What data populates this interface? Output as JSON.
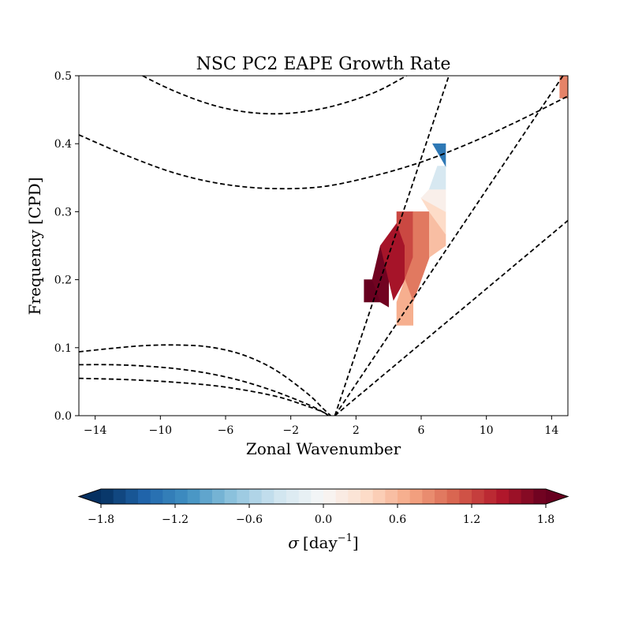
{
  "chart_data": {
    "type": "contourf",
    "title": "NSC PC2 EAPE Growth Rate",
    "xlabel": "Zonal Wavenumber",
    "ylabel": "Frequency [CPD]",
    "xlim": [
      -15,
      15
    ],
    "ylim": [
      0,
      0.5
    ],
    "xticks": [
      -14,
      -10,
      -6,
      -2,
      2,
      6,
      10,
      14
    ],
    "yticks": [
      0.0,
      0.1,
      0.2,
      0.3,
      0.4,
      0.5
    ],
    "xtick_labels": [
      "−14",
      "−10",
      "−6",
      "−2",
      "2",
      "6",
      "10",
      "14"
    ],
    "ytick_labels": [
      "0.0",
      "0.1",
      "0.2",
      "0.3",
      "0.4",
      "0.5"
    ],
    "grid": false,
    "colorbar": {
      "label_symbol": "σ",
      "label_unit": "[day",
      "label_exp": "−1",
      "label_close": "]",
      "range": [
        -1.8,
        1.8
      ],
      "ticks": [
        -1.8,
        -1.2,
        -0.6,
        0.0,
        0.6,
        1.2,
        1.8
      ],
      "tick_labels": [
        "−1.8",
        "−1.2",
        "−0.6",
        "0.0",
        "0.6",
        "1.2",
        "1.8"
      ],
      "colormap": "RdBu_r",
      "extend": "both"
    },
    "dispersion_curves": [
      {
        "points": [
          [
            -15,
            0.558
          ],
          [
            -12,
            0.512
          ],
          [
            -9,
            0.476
          ],
          [
            -6,
            0.452
          ],
          [
            -3,
            0.444
          ],
          [
            0,
            0.452
          ],
          [
            3,
            0.474
          ],
          [
            5.1,
            0.5
          ]
        ]
      },
      {
        "points": [
          [
            -15,
            0.413
          ],
          [
            -12,
            0.382
          ],
          [
            -9,
            0.356
          ],
          [
            -6,
            0.34
          ],
          [
            -3,
            0.334
          ],
          [
            0,
            0.337
          ],
          [
            3,
            0.352
          ],
          [
            6,
            0.373
          ],
          [
            9,
            0.401
          ],
          [
            12,
            0.434
          ],
          [
            15,
            0.47
          ]
        ]
      },
      {
        "points": [
          [
            0.7,
            0
          ],
          [
            7.7,
            0.5
          ]
        ]
      },
      {
        "points": [
          [
            0.7,
            0
          ],
          [
            14.7,
            0.5
          ]
        ]
      },
      {
        "points": [
          [
            0.7,
            0
          ],
          [
            15,
            0.287
          ]
        ]
      },
      {
        "points": [
          [
            -15,
            0.094
          ],
          [
            -13,
            0.099
          ],
          [
            -11,
            0.103
          ],
          [
            -9,
            0.104
          ],
          [
            -7,
            0.101
          ],
          [
            -5,
            0.09
          ],
          [
            -3,
            0.068
          ],
          [
            -1,
            0.033
          ],
          [
            0,
            0.01
          ],
          [
            0.45,
            0
          ]
        ]
      },
      {
        "points": [
          [
            -15,
            0.075
          ],
          [
            -13,
            0.075
          ],
          [
            -11,
            0.073
          ],
          [
            -9,
            0.069
          ],
          [
            -7,
            0.062
          ],
          [
            -5,
            0.051
          ],
          [
            -3,
            0.036
          ],
          [
            -1,
            0.017
          ],
          [
            0,
            0.005
          ],
          [
            0.3,
            0
          ]
        ]
      },
      {
        "points": [
          [
            -15,
            0.055
          ],
          [
            -12,
            0.053
          ],
          [
            -9,
            0.049
          ],
          [
            -6,
            0.042
          ],
          [
            -3,
            0.029
          ],
          [
            -1,
            0.014
          ],
          [
            0,
            0.005
          ],
          [
            0.3,
            0
          ]
        ]
      }
    ],
    "growth_patches": [
      {
        "value": 1.8,
        "points": [
          [
            2.5,
            0.2
          ],
          [
            3.5,
            0.2
          ],
          [
            3.5,
            0.167
          ],
          [
            2.5,
            0.167
          ]
        ]
      },
      {
        "value": 1.75,
        "points": [
          [
            3.5,
            0.25
          ],
          [
            4.0,
            0.2
          ],
          [
            4.0,
            0.16
          ],
          [
            3.5,
            0.167
          ],
          [
            3.0,
            0.2
          ]
        ]
      },
      {
        "value": 1.5,
        "points": [
          [
            4.5,
            0.283
          ],
          [
            5.0,
            0.25
          ],
          [
            5.0,
            0.2
          ],
          [
            4.3,
            0.17
          ],
          [
            4.0,
            0.2
          ],
          [
            3.5,
            0.25
          ]
        ]
      },
      {
        "value": 1.2,
        "points": [
          [
            4.5,
            0.3
          ],
          [
            5.5,
            0.3
          ],
          [
            5.5,
            0.233
          ],
          [
            5.0,
            0.2
          ],
          [
            5.0,
            0.25
          ],
          [
            4.5,
            0.283
          ]
        ]
      },
      {
        "value": 0.95,
        "points": [
          [
            5.5,
            0.3
          ],
          [
            6.5,
            0.3
          ],
          [
            6.5,
            0.233
          ],
          [
            6.0,
            0.2
          ],
          [
            5.5,
            0.167
          ],
          [
            5.0,
            0.2
          ],
          [
            5.5,
            0.233
          ]
        ]
      },
      {
        "value": 0.65,
        "points": [
          [
            4.5,
            0.167
          ],
          [
            5.0,
            0.2
          ],
          [
            5.5,
            0.167
          ],
          [
            5.5,
            0.133
          ],
          [
            4.5,
            0.133
          ]
        ]
      },
      {
        "value": 0.55,
        "points": [
          [
            6.5,
            0.3
          ],
          [
            7.5,
            0.267
          ],
          [
            7.5,
            0.25
          ],
          [
            6.5,
            0.233
          ]
        ]
      },
      {
        "value": 0.35,
        "points": [
          [
            6.0,
            0.32
          ],
          [
            7.5,
            0.3
          ],
          [
            7.5,
            0.267
          ],
          [
            6.5,
            0.3
          ]
        ]
      },
      {
        "value": 0.1,
        "points": [
          [
            6.5,
            0.333
          ],
          [
            7.5,
            0.333
          ],
          [
            7.5,
            0.3
          ],
          [
            6.0,
            0.32
          ]
        ]
      },
      {
        "value": -0.3,
        "points": [
          [
            7.0,
            0.367
          ],
          [
            7.5,
            0.367
          ],
          [
            7.5,
            0.333
          ],
          [
            6.5,
            0.333
          ]
        ]
      },
      {
        "value": -1.3,
        "points": [
          [
            7.5,
            0.367
          ],
          [
            7.5,
            0.4
          ],
          [
            6.7,
            0.4
          ]
        ]
      },
      {
        "value": 0.9,
        "points": [
          [
            14.5,
            0.5
          ],
          [
            15,
            0.5
          ],
          [
            15,
            0.467
          ],
          [
            14.5,
            0.467
          ]
        ]
      }
    ]
  }
}
